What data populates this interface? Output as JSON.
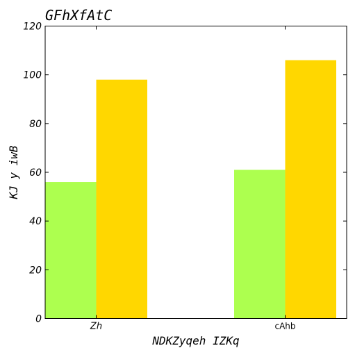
{
  "chart_data": {
    "type": "bar",
    "title": "GFhXfAtC",
    "xlabel": "NDKZyqeh IZKq",
    "ylabel": "KJ y iwB",
    "categories": [
      "Zh",
      "cAhb"
    ],
    "series": [
      {
        "values": [
          56,
          61
        ],
        "color": "#adff4f"
      },
      {
        "values": [
          98,
          106
        ],
        "color": "#ffd700"
      }
    ],
    "ylim": [
      0,
      120
    ],
    "yticks": [
      "0",
      "20",
      "40",
      "60",
      "80",
      "100",
      "120"
    ],
    "grid": false,
    "legend": "none"
  }
}
